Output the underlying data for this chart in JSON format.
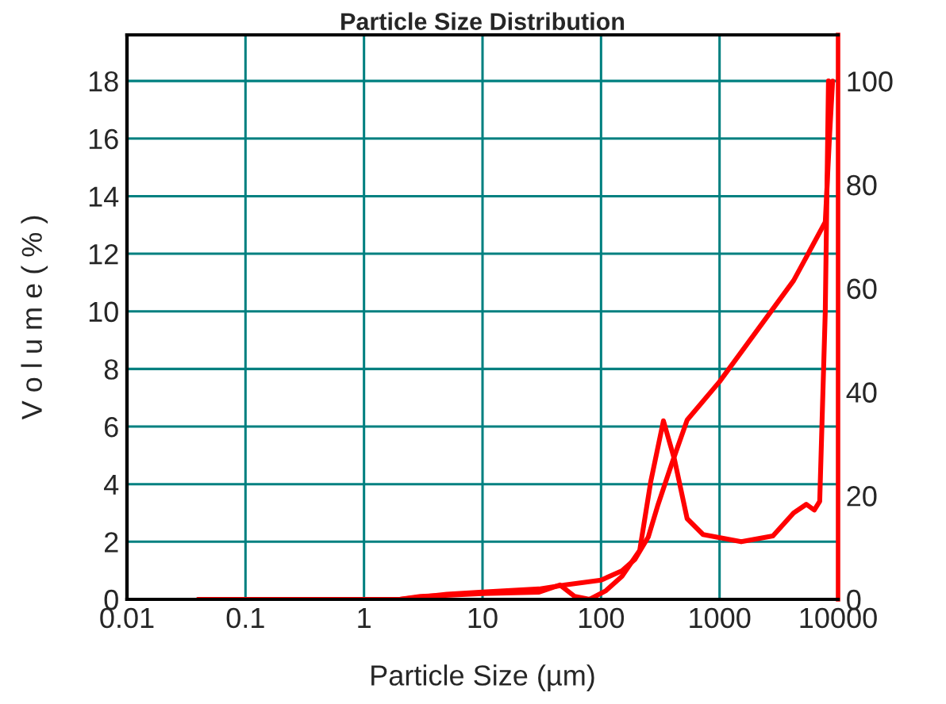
{
  "chart_data": {
    "type": "line",
    "title": "Particle Size Distribution",
    "xlabel": "Particle Size (µm)",
    "ylabel": "V o l u m e ( % )",
    "log": "x",
    "grid": true,
    "xlim": [
      0.01,
      10000
    ],
    "xticks": [
      0.01,
      0.1,
      1,
      10,
      100,
      1000,
      10000
    ],
    "ylim": [
      0,
      19.6
    ],
    "yticks": [
      0,
      2,
      4,
      6,
      8,
      10,
      12,
      14,
      16,
      18
    ],
    "y2lim": [
      0,
      108.9
    ],
    "y2ticks": [
      0,
      20,
      40,
      60,
      80,
      100
    ],
    "series": [
      {
        "color": "#ff0000",
        "x": [
          0.04,
          2,
          3,
          10,
          30,
          45,
          60,
          80,
          110,
          150,
          212,
          263,
          336,
          417,
          533,
          726,
          1524,
          2820,
          4217,
          5400,
          6300,
          7000,
          7800,
          8300
        ],
        "values": [
          0,
          0,
          0.1,
          0.2,
          0.25,
          0.5,
          0.1,
          0,
          0.3,
          0.8,
          1.7,
          4.1,
          6.2,
          4.85,
          2.8,
          2.25,
          2.0,
          2.2,
          3.0,
          3.3,
          3.1,
          3.4,
          10,
          18
        ]
      },
      {
        "color": "#ff0000",
        "axis": "y2",
        "x": [
          0.04,
          2,
          5,
          10,
          30,
          50,
          100,
          150,
          193,
          250,
          300,
          393,
          533,
          1000,
          1524,
          4217,
          7800,
          8500,
          9000
        ],
        "values": [
          0,
          0,
          1,
          1.4,
          2,
          2.8,
          3.7,
          5.5,
          7.7,
          12,
          18,
          26,
          34.6,
          42,
          47.7,
          61.5,
          72.8,
          90,
          100
        ]
      }
    ]
  }
}
